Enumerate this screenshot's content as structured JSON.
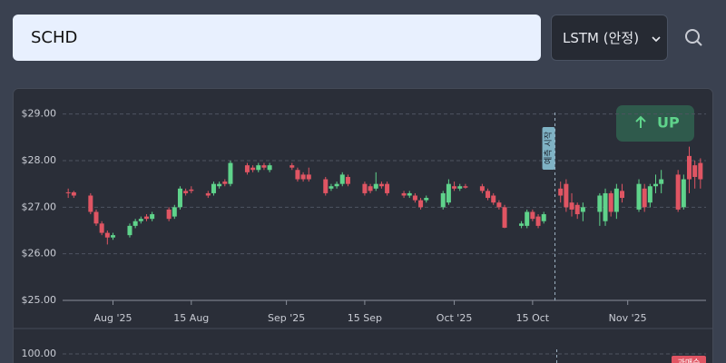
{
  "search": {
    "query": "SCHD"
  },
  "model_select": {
    "value": "LSTM (안정)"
  },
  "chart_data": {
    "type": "candlestick",
    "x": [
      "2025-07-24",
      "2025-07-25",
      "2025-07-28",
      "2025-07-29",
      "2025-07-30",
      "2025-07-31",
      "2025-08-01",
      "2025-08-04",
      "2025-08-05",
      "2025-08-06",
      "2025-08-07",
      "2025-08-08",
      "2025-08-11",
      "2025-08-12",
      "2025-08-13",
      "2025-08-14",
      "2025-08-15",
      "2025-08-18",
      "2025-08-19",
      "2025-08-20",
      "2025-08-21",
      "2025-08-22",
      "2025-08-25",
      "2025-08-26",
      "2025-08-27",
      "2025-08-28",
      "2025-08-29",
      "2025-09-02",
      "2025-09-03",
      "2025-09-04",
      "2025-09-05",
      "2025-09-08",
      "2025-09-09",
      "2025-09-10",
      "2025-09-11",
      "2025-09-12",
      "2025-09-15",
      "2025-09-16",
      "2025-09-17",
      "2025-09-18",
      "2025-09-19",
      "2025-09-22",
      "2025-09-23",
      "2025-09-24",
      "2025-09-25",
      "2025-09-26",
      "2025-09-29",
      "2025-09-30",
      "2025-10-01",
      "2025-10-02",
      "2025-10-03",
      "2025-10-06",
      "2025-10-07",
      "2025-10-08",
      "2025-10-09",
      "2025-10-10",
      "2025-10-13",
      "2025-10-14",
      "2025-10-15",
      "2025-10-16",
      "2025-10-17",
      "2025-10-20",
      "2025-10-21",
      "2025-10-22",
      "2025-10-23",
      "2025-10-24",
      "2025-10-27",
      "2025-10-28",
      "2025-10-29",
      "2025-10-30",
      "2025-10-31",
      "2025-11-03",
      "2025-11-04",
      "2025-11-05",
      "2025-11-06",
      "2025-11-07",
      "2025-11-10",
      "2025-11-11",
      "2025-11-12",
      "2025-11-13",
      "2025-11-14"
    ],
    "open": [
      27.32,
      27.32,
      27.25,
      26.9,
      26.65,
      26.45,
      26.35,
      26.4,
      26.6,
      26.7,
      26.8,
      26.75,
      26.95,
      26.8,
      27.0,
      27.35,
      27.38,
      27.3,
      27.3,
      27.45,
      27.55,
      27.5,
      27.9,
      27.85,
      27.8,
      27.9,
      27.8,
      27.9,
      27.8,
      27.7,
      27.7,
      27.6,
      27.4,
      27.45,
      27.5,
      27.65,
      27.5,
      27.45,
      27.4,
      27.5,
      27.5,
      27.3,
      27.25,
      27.25,
      27.15,
      27.15,
      27.0,
      27.1,
      27.45,
      27.4,
      27.45,
      27.45,
      27.35,
      27.25,
      27.1,
      27.0,
      26.6,
      26.6,
      26.9,
      26.8,
      26.7,
      27.4,
      27.5,
      27.1,
      27.05,
      26.9,
      26.9,
      26.7,
      27.3,
      26.9,
      27.35,
      26.95,
      27.4,
      27.1,
      27.45,
      27.5,
      27.7,
      27.0,
      28.1,
      27.9,
      27.95
    ],
    "high": [
      27.4,
      27.35,
      27.3,
      26.95,
      26.7,
      26.5,
      26.45,
      26.65,
      26.75,
      26.8,
      26.85,
      26.9,
      27.0,
      27.05,
      27.45,
      27.4,
      27.45,
      27.35,
      27.55,
      27.55,
      27.6,
      28.0,
      27.95,
      27.9,
      27.95,
      27.95,
      27.95,
      27.95,
      27.85,
      27.75,
      27.85,
      27.65,
      27.5,
      27.55,
      27.75,
      27.7,
      27.55,
      27.5,
      27.75,
      27.55,
      27.55,
      27.35,
      27.35,
      27.3,
      27.2,
      27.25,
      27.35,
      27.6,
      27.55,
      27.5,
      27.5,
      27.5,
      27.4,
      27.3,
      27.15,
      27.05,
      26.7,
      26.95,
      26.95,
      26.85,
      26.9,
      27.55,
      27.6,
      27.3,
      27.1,
      27.1,
      27.3,
      27.4,
      27.35,
      27.5,
      27.5,
      27.6,
      27.5,
      27.5,
      27.7,
      27.8,
      27.8,
      27.7,
      28.3,
      28.0,
      28.05
    ],
    "low": [
      27.2,
      27.2,
      26.85,
      26.6,
      26.4,
      26.2,
      26.3,
      26.35,
      26.55,
      26.65,
      26.7,
      26.7,
      26.7,
      26.75,
      26.95,
      27.25,
      27.3,
      27.2,
      27.25,
      27.4,
      27.45,
      27.45,
      27.7,
      27.75,
      27.75,
      27.8,
      27.75,
      27.8,
      27.55,
      27.55,
      27.55,
      27.25,
      27.35,
      27.4,
      27.45,
      27.45,
      27.25,
      27.3,
      27.35,
      27.4,
      27.25,
      27.2,
      27.2,
      27.1,
      26.95,
      27.1,
      26.95,
      27.05,
      27.35,
      27.35,
      27.4,
      27.3,
      27.15,
      27.05,
      26.95,
      26.55,
      26.55,
      26.55,
      26.7,
      26.55,
      26.65,
      27.1,
      26.9,
      26.8,
      26.75,
      26.7,
      26.6,
      26.6,
      26.8,
      26.75,
      27.1,
      26.9,
      26.9,
      27.0,
      27.3,
      27.3,
      26.9,
      26.95,
      27.3,
      27.4,
      27.4
    ],
    "close": [
      27.3,
      27.25,
      26.9,
      26.65,
      26.45,
      26.35,
      26.4,
      26.6,
      26.7,
      26.75,
      26.75,
      26.85,
      26.75,
      27.0,
      27.4,
      27.3,
      27.35,
      27.25,
      27.5,
      27.5,
      27.5,
      27.95,
      27.75,
      27.8,
      27.9,
      27.85,
      27.9,
      27.85,
      27.6,
      27.6,
      27.6,
      27.3,
      27.45,
      27.5,
      27.7,
      27.5,
      27.3,
      27.35,
      27.5,
      27.45,
      27.3,
      27.25,
      27.3,
      27.15,
      27.0,
      27.2,
      27.3,
      27.5,
      27.4,
      27.45,
      27.42,
      27.35,
      27.2,
      27.1,
      27.0,
      26.56,
      26.65,
      26.9,
      26.75,
      26.6,
      26.85,
      27.25,
      27.0,
      26.95,
      26.85,
      27.0,
      27.25,
      27.3,
      26.9,
      27.4,
      27.2,
      27.5,
      27.0,
      27.45,
      27.5,
      27.6,
      26.95,
      27.6,
      27.6,
      27.65,
      27.6
    ],
    "up_color": "#5fd38b",
    "down_color": "#e05563",
    "xlim": [
      "2025-07-23",
      "2025-11-15"
    ],
    "xticks": [
      {
        "value": "2025-08-01",
        "label": "Aug '25"
      },
      {
        "value": "2025-08-15",
        "label": "15 Aug"
      },
      {
        "value": "2025-09-01",
        "label": "Sep '25"
      },
      {
        "value": "2025-09-15",
        "label": "15 Sep"
      },
      {
        "value": "2025-10-01",
        "label": "Oct '25"
      },
      {
        "value": "2025-10-15",
        "label": "15 Oct"
      },
      {
        "value": "2025-11-01",
        "label": "Nov '25"
      }
    ],
    "ylim": [
      25,
      29.5
    ],
    "yticks": [
      {
        "value": 25,
        "label": "$25.00"
      },
      {
        "value": 26,
        "label": "$26.00"
      },
      {
        "value": 27,
        "label": "$27.00"
      },
      {
        "value": 28,
        "label": "$28.00"
      },
      {
        "value": 29,
        "label": "$29.00"
      }
    ],
    "grid": true,
    "forecast_start": {
      "x": "2025-10-19",
      "label": "예측 시작"
    },
    "signal_badge": "UP"
  },
  "indicator_panel": {
    "yticks": [
      {
        "value": 100,
        "label": "100.00"
      }
    ],
    "badge": "과매수"
  }
}
